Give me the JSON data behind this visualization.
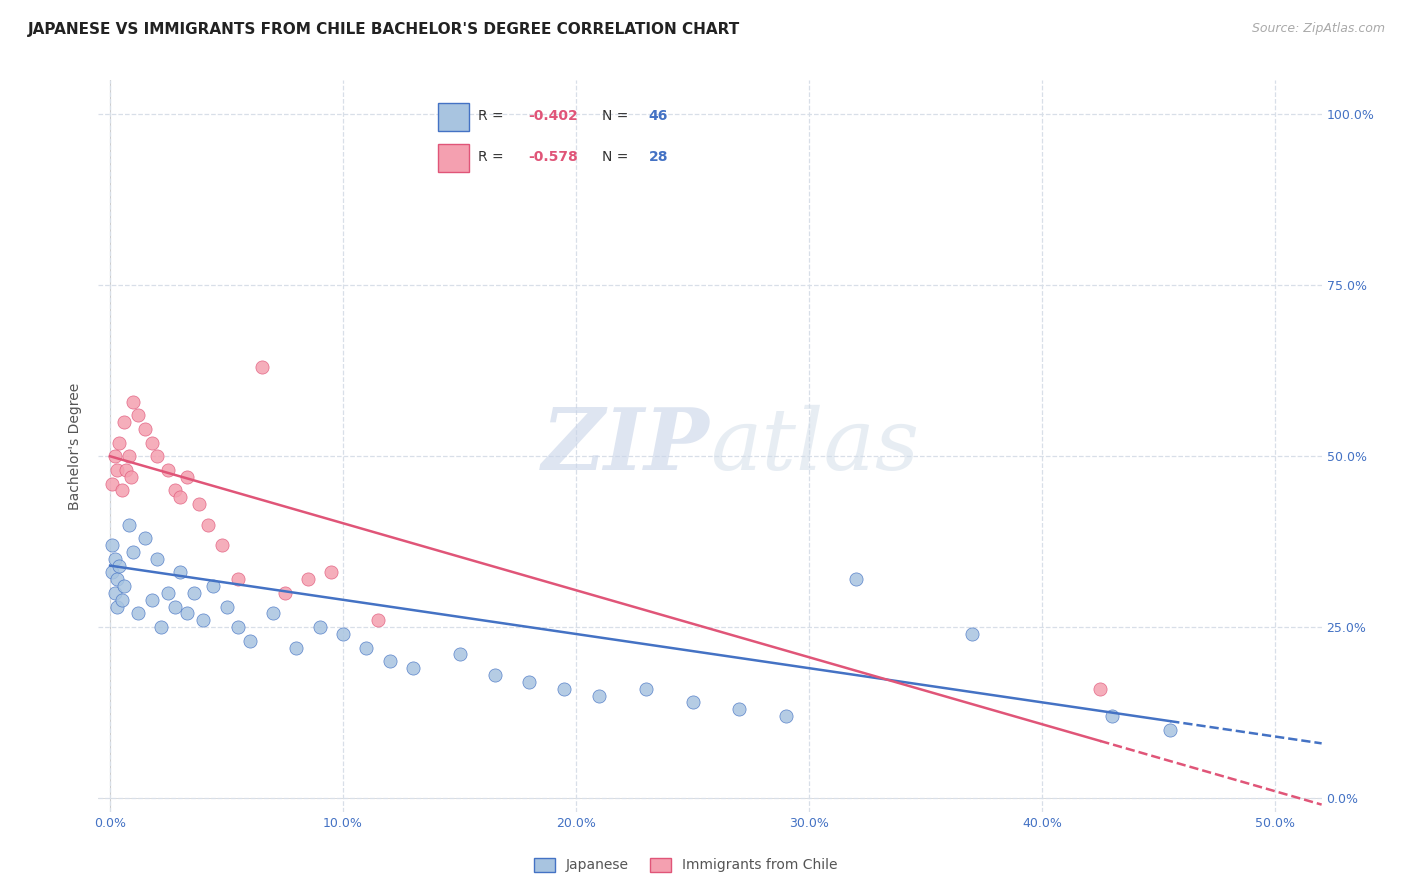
{
  "title": "JAPANESE VS IMMIGRANTS FROM CHILE BACHELOR'S DEGREE CORRELATION CHART",
  "source": "Source: ZipAtlas.com",
  "ylabel": "Bachelor's Degree",
  "xlabel_ticks": [
    "0.0%",
    "10.0%",
    "20.0%",
    "30.0%",
    "40.0%",
    "50.0%"
  ],
  "xlabel_vals": [
    0.0,
    0.1,
    0.2,
    0.3,
    0.4,
    0.5
  ],
  "ylabel_ticks_right": [
    "0.0%",
    "25.0%",
    "50.0%",
    "75.0%",
    "100.0%"
  ],
  "ylabel_vals": [
    0.0,
    0.25,
    0.5,
    0.75,
    1.0
  ],
  "xlim": [
    -0.005,
    0.52
  ],
  "ylim": [
    -0.02,
    1.05
  ],
  "japanese_R": -0.402,
  "japanese_N": 46,
  "chile_R": -0.578,
  "chile_N": 28,
  "watermark_zip": "ZIP",
  "watermark_atlas": "atlas",
  "japanese_color": "#a8c4e0",
  "chile_color": "#f4a0b0",
  "japanese_line_color": "#4472c4",
  "chile_line_color": "#e05578",
  "japanese_x": [
    0.001,
    0.001,
    0.002,
    0.002,
    0.003,
    0.003,
    0.004,
    0.005,
    0.006,
    0.008,
    0.01,
    0.012,
    0.015,
    0.018,
    0.02,
    0.022,
    0.025,
    0.028,
    0.03,
    0.033,
    0.036,
    0.04,
    0.044,
    0.05,
    0.055,
    0.06,
    0.07,
    0.08,
    0.09,
    0.1,
    0.11,
    0.12,
    0.13,
    0.15,
    0.165,
    0.18,
    0.195,
    0.21,
    0.23,
    0.25,
    0.27,
    0.29,
    0.32,
    0.37,
    0.43,
    0.455
  ],
  "japanese_y": [
    0.37,
    0.33,
    0.35,
    0.3,
    0.32,
    0.28,
    0.34,
    0.29,
    0.31,
    0.4,
    0.36,
    0.27,
    0.38,
    0.29,
    0.35,
    0.25,
    0.3,
    0.28,
    0.33,
    0.27,
    0.3,
    0.26,
    0.31,
    0.28,
    0.25,
    0.23,
    0.27,
    0.22,
    0.25,
    0.24,
    0.22,
    0.2,
    0.19,
    0.21,
    0.18,
    0.17,
    0.16,
    0.15,
    0.16,
    0.14,
    0.13,
    0.12,
    0.32,
    0.24,
    0.12,
    0.1
  ],
  "chile_x": [
    0.001,
    0.002,
    0.003,
    0.004,
    0.005,
    0.006,
    0.007,
    0.008,
    0.009,
    0.01,
    0.012,
    0.015,
    0.018,
    0.02,
    0.025,
    0.028,
    0.03,
    0.033,
    0.038,
    0.042,
    0.048,
    0.055,
    0.065,
    0.075,
    0.085,
    0.095,
    0.115,
    0.425
  ],
  "chile_y": [
    0.46,
    0.5,
    0.48,
    0.52,
    0.45,
    0.55,
    0.48,
    0.5,
    0.47,
    0.58,
    0.56,
    0.54,
    0.52,
    0.5,
    0.48,
    0.45,
    0.44,
    0.47,
    0.43,
    0.4,
    0.37,
    0.32,
    0.63,
    0.3,
    0.32,
    0.33,
    0.26,
    0.16
  ],
  "background_color": "#ffffff",
  "grid_color": "#d8dfe8",
  "title_fontsize": 11,
  "axis_label_fontsize": 10,
  "tick_fontsize": 9,
  "legend_fontsize": 10,
  "source_fontsize": 9
}
